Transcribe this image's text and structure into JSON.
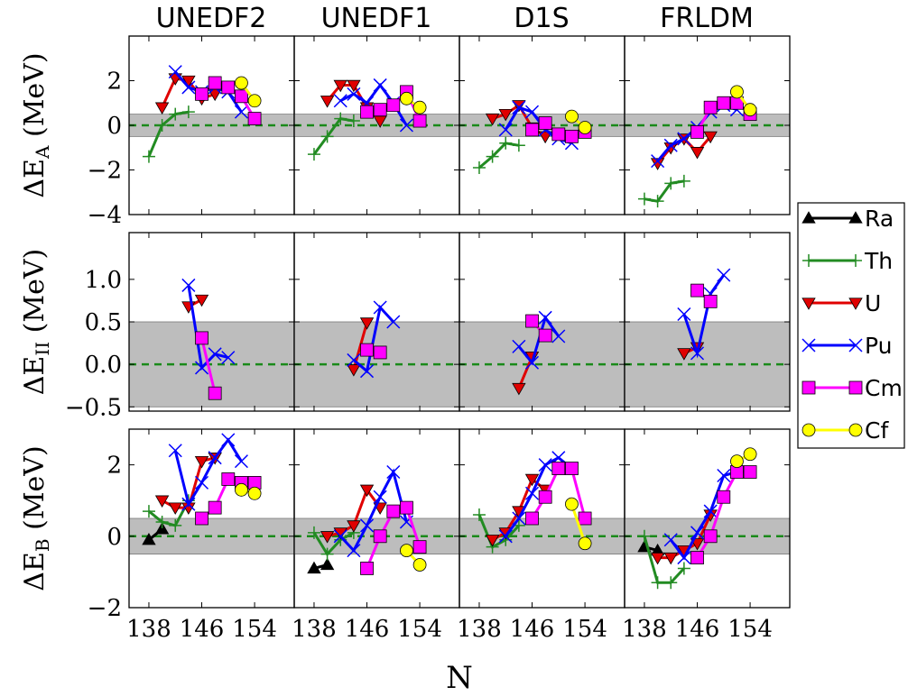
{
  "panel_titles": [
    "UNEDF2",
    "UNEDF1",
    "D1S",
    "FRLDM"
  ],
  "row_labels": [
    {
      "pre": "ΔE",
      "sub": "A",
      "post": " (MeV)"
    },
    {
      "pre": "ΔE",
      "sub": "II",
      "post": " (MeV)"
    },
    {
      "pre": "ΔE",
      "sub": "B",
      "post": " (MeV)"
    }
  ],
  "xlabel": "N",
  "x_ticks": [
    "138",
    "146",
    "154"
  ],
  "y_ticks": [
    [
      "−4",
      "−2",
      "0",
      "2"
    ],
    [
      "−0.5",
      "0.0",
      "0.5",
      "1.0"
    ],
    [
      "−2",
      "0",
      "2"
    ]
  ],
  "legend": [
    {
      "name": "Ra",
      "color": "#000000",
      "marker": "triangle-up"
    },
    {
      "name": "Th",
      "color": "#228b22",
      "marker": "plus"
    },
    {
      "name": "U",
      "color": "#e00000",
      "marker": "triangle-down"
    },
    {
      "name": "Pu",
      "color": "#0000ff",
      "marker": "x"
    },
    {
      "name": "Cm",
      "color": "#ff00ff",
      "marker": "square"
    },
    {
      "name": "Cf",
      "color": "#ffff00",
      "marker": "circle"
    }
  ],
  "chart_data": {
    "type": "line",
    "description_units": "N (neutron number) vs deviation in MeV",
    "xlim": [
      135,
      160
    ],
    "ylims": [
      [
        -4,
        4
      ],
      [
        -0.55,
        1.55
      ],
      [
        -2,
        3
      ]
    ],
    "band": [
      [
        -0.5,
        0.5
      ],
      [
        -0.5,
        0.5
      ],
      [
        -0.5,
        0.5
      ]
    ],
    "rows": [
      [
        {
          "Th": [
            [
              138,
              -1.4
            ],
            [
              140,
              0
            ],
            [
              142,
              0.5
            ],
            [
              144,
              0.6
            ]
          ],
          "U": [
            [
              140,
              0.8
            ],
            [
              142,
              2.1
            ],
            [
              144,
              2.0
            ],
            [
              146,
              1.2
            ],
            [
              148,
              1.4
            ]
          ],
          "Pu": [
            [
              142,
              2.4
            ],
            [
              144,
              1.7
            ],
            [
              146,
              1.5
            ],
            [
              148,
              1.7
            ],
            [
              150,
              1.5
            ],
            [
              152,
              0.6
            ]
          ],
          "Cm": [
            [
              146,
              1.4
            ],
            [
              148,
              1.9
            ],
            [
              150,
              1.7
            ],
            [
              152,
              1.3
            ],
            [
              154,
              0.3
            ]
          ],
          "Cf": [
            [
              152,
              1.9
            ],
            [
              154,
              1.1
            ]
          ]
        },
        {
          "Th": [
            [
              138,
              -1.3
            ],
            [
              140,
              -0.5
            ],
            [
              142,
              0.3
            ],
            [
              144,
              0.2
            ]
          ],
          "U": [
            [
              140,
              1.1
            ],
            [
              142,
              1.8
            ],
            [
              144,
              1.8
            ],
            [
              146,
              0.8
            ],
            [
              148,
              0.2
            ]
          ],
          "Pu": [
            [
              142,
              1.1
            ],
            [
              144,
              1.4
            ],
            [
              146,
              1.0
            ],
            [
              148,
              1.8
            ],
            [
              150,
              1.0
            ],
            [
              152,
              0.0
            ]
          ],
          "Cm": [
            [
              146,
              0.6
            ],
            [
              148,
              0.7
            ],
            [
              150,
              0.9
            ],
            [
              152,
              1.5
            ],
            [
              154,
              0.2
            ]
          ],
          "Cf": [
            [
              152,
              1.2
            ],
            [
              154,
              0.8
            ]
          ]
        },
        {
          "Th": [
            [
              138,
              -1.9
            ],
            [
              140,
              -1.4
            ],
            [
              142,
              -0.8
            ],
            [
              144,
              -0.9
            ]
          ],
          "U": [
            [
              140,
              0.3
            ],
            [
              142,
              0.5
            ],
            [
              144,
              0.9
            ],
            [
              146,
              -0.1
            ],
            [
              148,
              -0.5
            ]
          ],
          "Pu": [
            [
              142,
              -0.2
            ],
            [
              144,
              0.8
            ],
            [
              146,
              0.6
            ],
            [
              148,
              -0.2
            ],
            [
              150,
              -0.6
            ],
            [
              152,
              -0.8
            ]
          ],
          "Cm": [
            [
              146,
              -0.2
            ],
            [
              148,
              0.1
            ],
            [
              150,
              -0.4
            ],
            [
              152,
              -0.5
            ],
            [
              154,
              -0.3
            ]
          ],
          "Cf": [
            [
              152,
              0.4
            ],
            [
              154,
              -0.1
            ]
          ]
        },
        {
          "Th": [
            [
              138,
              -3.3
            ],
            [
              140,
              -3.4
            ],
            [
              142,
              -2.6
            ],
            [
              144,
              -2.5
            ]
          ],
          "U": [
            [
              140,
              -1.7
            ],
            [
              142,
              -1.0
            ],
            [
              144,
              -0.6
            ],
            [
              146,
              -1.2
            ],
            [
              148,
              -0.5
            ]
          ],
          "Pu": [
            [
              140,
              -1.6
            ],
            [
              142,
              -0.9
            ],
            [
              144,
              -0.6
            ],
            [
              146,
              -0.1
            ],
            [
              148,
              0.6
            ],
            [
              150,
              0.9
            ],
            [
              152,
              0.7
            ]
          ],
          "Cm": [
            [
              146,
              -0.3
            ],
            [
              148,
              0.8
            ],
            [
              150,
              1.0
            ],
            [
              152,
              1.0
            ],
            [
              154,
              0.5
            ]
          ],
          "Cf": [
            [
              152,
              1.5
            ],
            [
              154,
              0.7
            ]
          ]
        }
      ],
      [
        {
          "U": [
            [
              144,
              0.68
            ],
            [
              146,
              0.76
            ]
          ],
          "Pu": [
            [
              144,
              0.93
            ],
            [
              146,
              -0.04
            ],
            [
              148,
              0.12
            ],
            [
              150,
              0.08
            ]
          ],
          "Cm": [
            [
              146,
              0.31
            ],
            [
              148,
              -0.34
            ]
          ]
        },
        {
          "U": [
            [
              144,
              -0.06
            ],
            [
              146,
              0.49
            ]
          ],
          "Pu": [
            [
              144,
              0.05
            ],
            [
              146,
              -0.08
            ],
            [
              148,
              0.67
            ],
            [
              150,
              0.5
            ]
          ],
          "Cm": [
            [
              146,
              0.17
            ],
            [
              148,
              0.14
            ]
          ]
        },
        {
          "U": [
            [
              144,
              -0.28
            ],
            [
              146,
              0.09
            ]
          ],
          "Pu": [
            [
              144,
              0.21
            ],
            [
              146,
              0.02
            ],
            [
              148,
              0.55
            ],
            [
              150,
              0.33
            ]
          ],
          "Cm": [
            [
              146,
              0.51
            ],
            [
              148,
              0.34
            ]
          ]
        },
        {
          "U": [
            [
              144,
              0.13
            ],
            [
              146,
              0.2
            ]
          ],
          "Pu": [
            [
              144,
              0.59
            ],
            [
              146,
              0.13
            ],
            [
              148,
              0.83
            ],
            [
              150,
              1.05
            ]
          ],
          "Cm": [
            [
              146,
              0.87
            ],
            [
              148,
              0.74
            ]
          ]
        }
      ],
      [
        {
          "Ra": [
            [
              138,
              -0.1
            ],
            [
              140,
              0.2
            ]
          ],
          "Th": [
            [
              138,
              0.7
            ],
            [
              140,
              0.4
            ],
            [
              142,
              0.3
            ],
            [
              144,
              1.0
            ]
          ],
          "U": [
            [
              140,
              1.0
            ],
            [
              142,
              0.8
            ],
            [
              144,
              0.8
            ],
            [
              146,
              2.1
            ],
            [
              148,
              2.2
            ]
          ],
          "Pu": [
            [
              142,
              2.4
            ],
            [
              144,
              0.9
            ],
            [
              146,
              1.5
            ],
            [
              148,
              2.2
            ],
            [
              150,
              2.7
            ],
            [
              152,
              2.1
            ]
          ],
          "Cm": [
            [
              146,
              0.5
            ],
            [
              148,
              0.8
            ],
            [
              150,
              1.6
            ],
            [
              152,
              1.5
            ],
            [
              154,
              1.5
            ]
          ],
          "Cf": [
            [
              152,
              1.3
            ],
            [
              154,
              1.2
            ]
          ]
        },
        {
          "Ra": [
            [
              138,
              -0.9
            ],
            [
              140,
              -0.8
            ]
          ],
          "Th": [
            [
              138,
              0.1
            ],
            [
              140,
              -0.5
            ],
            [
              142,
              -0.1
            ],
            [
              144,
              0.1
            ]
          ],
          "U": [
            [
              140,
              0.0
            ],
            [
              142,
              0.1
            ],
            [
              144,
              0.3
            ],
            [
              146,
              1.3
            ],
            [
              148,
              0.8
            ]
          ],
          "Pu": [
            [
              142,
              0.0
            ],
            [
              144,
              -0.4
            ],
            [
              146,
              0.3
            ],
            [
              148,
              1.1
            ],
            [
              150,
              1.8
            ],
            [
              152,
              0.4
            ]
          ],
          "Cm": [
            [
              146,
              -0.9
            ],
            [
              148,
              0.0
            ],
            [
              150,
              0.7
            ],
            [
              152,
              0.8
            ],
            [
              154,
              -0.3
            ]
          ],
          "Cf": [
            [
              152,
              -0.4
            ],
            [
              154,
              -0.8
            ]
          ]
        },
        {
          "Th": [
            [
              138,
              0.6
            ],
            [
              140,
              -0.3
            ],
            [
              142,
              -0.1
            ],
            [
              144,
              0.3
            ]
          ],
          "U": [
            [
              140,
              -0.1
            ],
            [
              142,
              0.1
            ],
            [
              144,
              0.7
            ],
            [
              146,
              1.6
            ],
            [
              148,
              1.3
            ]
          ],
          "Pu": [
            [
              142,
              0.0
            ],
            [
              144,
              0.5
            ],
            [
              146,
              1.2
            ],
            [
              148,
              2.0
            ],
            [
              150,
              2.2
            ],
            [
              152,
              1.9
            ]
          ],
          "Cm": [
            [
              146,
              0.5
            ],
            [
              148,
              1.1
            ],
            [
              150,
              1.9
            ],
            [
              152,
              1.9
            ],
            [
              154,
              0.5
            ]
          ],
          "Cf": [
            [
              152,
              0.9
            ],
            [
              154,
              -0.2
            ]
          ]
        },
        {
          "Ra": [
            [
              138,
              -0.3
            ],
            [
              140,
              -0.4
            ]
          ],
          "Th": [
            [
              138,
              0.0
            ],
            [
              140,
              -1.3
            ],
            [
              142,
              -1.3
            ],
            [
              144,
              -0.9
            ]
          ],
          "U": [
            [
              140,
              -0.6
            ],
            [
              142,
              -0.6
            ],
            [
              144,
              -0.4
            ],
            [
              146,
              -0.2
            ],
            [
              148,
              0.6
            ]
          ],
          "Pu": [
            [
              142,
              -0.1
            ],
            [
              144,
              -0.6
            ],
            [
              146,
              0.1
            ],
            [
              148,
              0.7
            ],
            [
              150,
              1.7
            ],
            [
              152,
              1.8
            ]
          ],
          "Cm": [
            [
              146,
              -0.6
            ],
            [
              148,
              0.0
            ],
            [
              150,
              1.1
            ],
            [
              152,
              1.8
            ],
            [
              154,
              1.8
            ]
          ],
          "Cf": [
            [
              152,
              2.1
            ],
            [
              154,
              2.3
            ]
          ]
        }
      ]
    ]
  }
}
